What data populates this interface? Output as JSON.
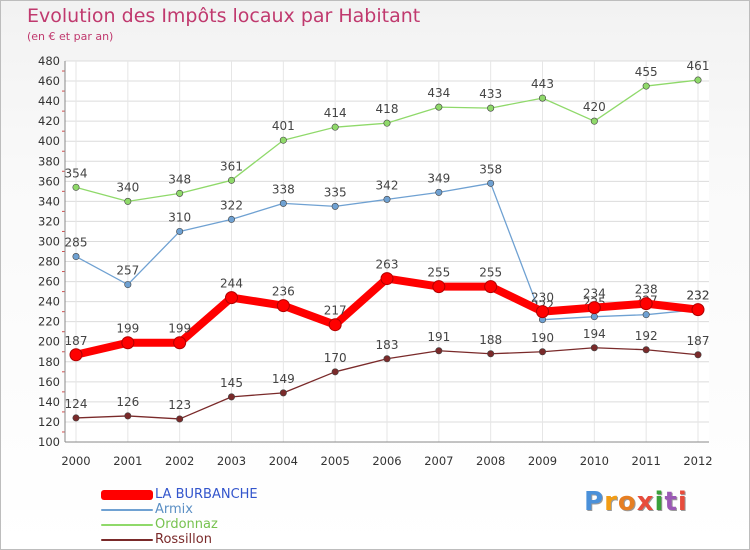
{
  "header": {
    "title": "Evolution des Impôts locaux par Habitant",
    "subtitle": "(en € et par an)"
  },
  "logo": {
    "text": "Proxiti",
    "letter_colors": [
      "#4a90d9",
      "#f39c12",
      "#e67e22",
      "#e74c3c",
      "#3aa13a",
      "#9b59b6",
      "#e74c3c"
    ]
  },
  "chart_data": {
    "type": "line",
    "x": [
      "2000",
      "2001",
      "2002",
      "2003",
      "2004",
      "2005",
      "2006",
      "2007",
      "2008",
      "2009",
      "2010",
      "2011",
      "2012"
    ],
    "ylim": [
      100,
      480
    ],
    "yticks": [
      100,
      120,
      140,
      160,
      180,
      200,
      220,
      240,
      260,
      280,
      300,
      320,
      340,
      360,
      380,
      400,
      420,
      440,
      460,
      480
    ],
    "grid": true,
    "legend_position": "bottom-left",
    "series": [
      {
        "name": "LA BURBANCHE",
        "color": "#ff0000",
        "label_color": "#3355cc",
        "emphasis": true,
        "values": [
          187,
          199,
          199,
          244,
          236,
          217,
          263,
          255,
          255,
          230,
          234,
          238,
          232
        ]
      },
      {
        "name": "Armix",
        "color": "#6fa1d2",
        "label_color": "#5b8fc4",
        "emphasis": false,
        "values": [
          285,
          257,
          310,
          322,
          338,
          335,
          342,
          349,
          358,
          222,
          225,
          227,
          232
        ]
      },
      {
        "name": "Ordonnaz",
        "color": "#8fd96a",
        "label_color": "#77c24f",
        "emphasis": false,
        "values": [
          354,
          340,
          348,
          361,
          401,
          414,
          418,
          434,
          433,
          443,
          420,
          455,
          461
        ]
      },
      {
        "name": "Rossillon",
        "color": "#7a2a2a",
        "label_color": "#7a2a2a",
        "emphasis": false,
        "values": [
          124,
          126,
          123,
          145,
          149,
          170,
          183,
          191,
          188,
          190,
          194,
          192,
          187
        ]
      }
    ]
  }
}
